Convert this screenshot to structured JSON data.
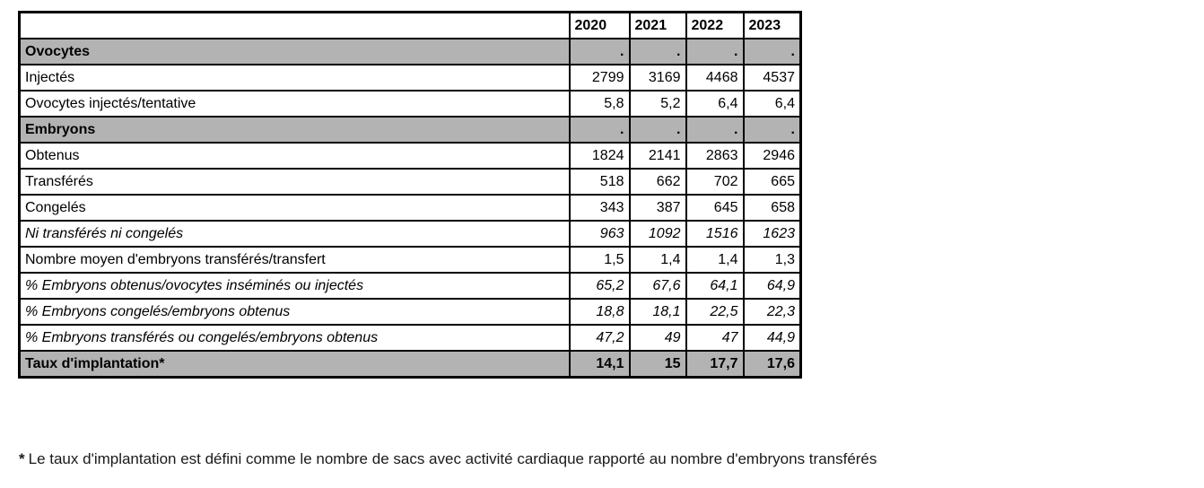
{
  "colors": {
    "section_bg": "#b3b3b3",
    "border": "#000000",
    "background": "#ffffff"
  },
  "table": {
    "corner_label": "",
    "year_headers": [
      "2020",
      "2021",
      "2022",
      "2023"
    ],
    "rows": [
      {
        "label": "Ovocytes",
        "style": "section",
        "values": [
          ".",
          ".",
          ".",
          "."
        ]
      },
      {
        "label": "Injectés",
        "style": "normal",
        "values": [
          "2799",
          "3169",
          "4468",
          "4537"
        ]
      },
      {
        "label": "Ovocytes injectés/tentative",
        "style": "normal",
        "values": [
          "5,8",
          "5,2",
          "6,4",
          "6,4"
        ]
      },
      {
        "label": "Embryons",
        "style": "section",
        "values": [
          ".",
          ".",
          ".",
          "."
        ]
      },
      {
        "label": "Obtenus",
        "style": "normal",
        "values": [
          "1824",
          "2141",
          "2863",
          "2946"
        ]
      },
      {
        "label": "Transférés",
        "style": "normal",
        "values": [
          "518",
          "662",
          "702",
          "665"
        ]
      },
      {
        "label": "Congelés",
        "style": "normal",
        "values": [
          "343",
          "387",
          "645",
          "658"
        ]
      },
      {
        "label": "Ni transférés ni congelés",
        "style": "italic",
        "values": [
          "963",
          "1092",
          "1516",
          "1623"
        ]
      },
      {
        "label": "Nombre moyen d'embryons transférés/transfert",
        "style": "normal",
        "values": [
          "1,5",
          "1,4",
          "1,4",
          "1,3"
        ]
      },
      {
        "label": "% Embryons obtenus/ovocytes inséminés ou injectés",
        "style": "italic",
        "values": [
          "65,2",
          "67,6",
          "64,1",
          "64,9"
        ]
      },
      {
        "label": "% Embryons congelés/embryons obtenus",
        "style": "italic",
        "values": [
          "18,8",
          "18,1",
          "22,5",
          "22,3"
        ]
      },
      {
        "label": "% Embryons transférés ou congelés/embryons obtenus",
        "style": "italic",
        "values": [
          "47,2",
          "49",
          "47",
          "44,9"
        ]
      },
      {
        "label": "Taux d'implantation*",
        "style": "section",
        "values": [
          "14,1",
          "15",
          "17,7",
          "17,6"
        ]
      }
    ]
  },
  "footnote": {
    "marker": "*",
    "text": "Le taux d'implantation est défini comme le nombre de sacs avec activité cardiaque rapporté au nombre d'embryons transférés"
  }
}
